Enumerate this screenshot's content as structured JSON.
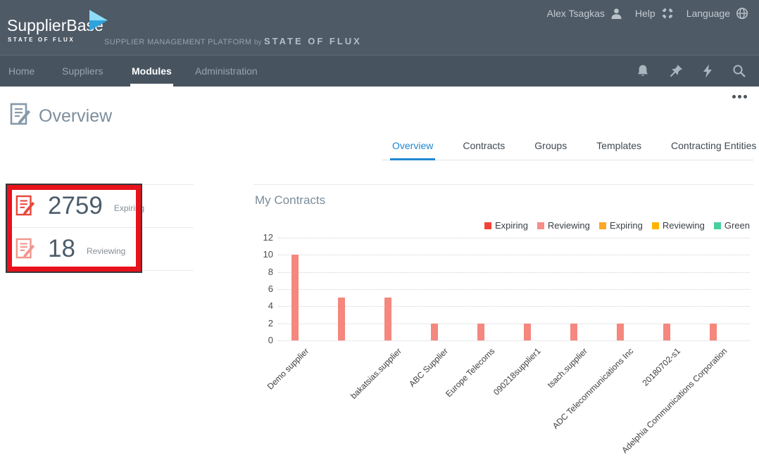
{
  "header": {
    "logo_name": "SupplierBase",
    "logo_sub": "STATE OF FLUX",
    "tagline_prefix": "SUPPLIER MANAGEMENT PLATFORM",
    "tagline_by": "by",
    "tagline_brand": "STATE OF FLUX",
    "user_name": "Alex Tsagkas",
    "help_label": "Help",
    "language_label": "Language",
    "icons": [
      "user-icon",
      "help-ring-icon",
      "globe-icon"
    ],
    "background_color": "#4e5a66"
  },
  "nav": {
    "items": [
      {
        "label": "Home",
        "active": false
      },
      {
        "label": "Suppliers",
        "active": false
      },
      {
        "label": "Modules",
        "active": true
      },
      {
        "label": "Administration",
        "active": false
      }
    ],
    "icons": [
      "bell-icon",
      "pin-icon",
      "lightning-icon",
      "search-icon"
    ],
    "background_color": "#475460"
  },
  "page": {
    "title": "Overview",
    "title_icon": "contract-document-icon",
    "tabs": [
      {
        "label": "Overview",
        "active": true
      },
      {
        "label": "Contracts",
        "active": false
      },
      {
        "label": "Groups",
        "active": false
      },
      {
        "label": "Templates",
        "active": false
      },
      {
        "label": "Contracting Entities",
        "active": false
      }
    ],
    "active_tab_color": "#1f87d2"
  },
  "stats": [
    {
      "value": "2759",
      "label": "Expiring",
      "icon": "contract-icon",
      "icon_color": "#e8473c"
    },
    {
      "value": "18",
      "label": "Reviewing",
      "icon": "contract-icon",
      "icon_color": "#f2958d"
    }
  ],
  "annotation": {
    "shape": "red-highlight-rectangle",
    "color": "#e8121c"
  },
  "chart_data": {
    "type": "bar",
    "title": "My Contracts",
    "categories": [
      "Demo supplier",
      "",
      "bakatsias.supplier",
      "ABC Supplier",
      "Europe Telecoms",
      "090218supplier1",
      "tsach.supplier",
      "ADC Telecommunications Inc",
      "20180702-s1",
      "Adelphia Communications Corporation"
    ],
    "values": [
      10,
      5,
      5,
      2,
      2,
      2,
      2,
      2,
      2,
      2
    ],
    "bar_color": "#f5877e",
    "ylim": [
      0,
      12
    ],
    "ytick_step": 2,
    "yticks": [
      0,
      2,
      4,
      6,
      8,
      10,
      12
    ],
    "grid": "horizontal-dotted",
    "xlabel_rotation": -45,
    "legend_position": "top-right",
    "legend": [
      {
        "label": "Expiring",
        "color": "#f44336"
      },
      {
        "label": "Reviewing",
        "color": "#f58f88"
      },
      {
        "label": "Expiring",
        "color": "#ffa726"
      },
      {
        "label": "Reviewing",
        "color": "#ffb300"
      },
      {
        "label": "Green",
        "color": "#47d19c"
      }
    ]
  }
}
